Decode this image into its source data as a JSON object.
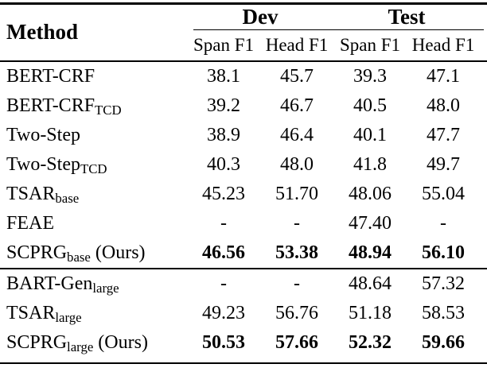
{
  "table": {
    "header": {
      "method_label": "Method",
      "group_dev": "Dev",
      "group_test": "Test",
      "subheaders": [
        "Span F1",
        "Head F1",
        "Span F1",
        "Head F1"
      ]
    },
    "rows_group1": [
      {
        "name": "BERT-CRF",
        "sub": "",
        "suffix": "",
        "values": [
          "38.1",
          "45.7",
          "39.3",
          "47.1"
        ],
        "bold": false
      },
      {
        "name": "BERT-CRF",
        "sub": "TCD",
        "suffix": "",
        "values": [
          "39.2",
          "46.7",
          "40.5",
          "48.0"
        ],
        "bold": false
      },
      {
        "name": "Two-Step",
        "sub": "",
        "suffix": "",
        "values": [
          "38.9",
          "46.4",
          "40.1",
          "47.7"
        ],
        "bold": false
      },
      {
        "name": "Two-Step",
        "sub": "TCD",
        "suffix": "",
        "values": [
          "40.3",
          "48.0",
          "41.8",
          "49.7"
        ],
        "bold": false
      },
      {
        "name": "TSAR",
        "sub": "base",
        "suffix": "",
        "values": [
          "45.23",
          "51.70",
          "48.06",
          "55.04"
        ],
        "bold": false
      },
      {
        "name": "FEAE",
        "sub": "",
        "suffix": "",
        "values": [
          "-",
          "-",
          "47.40",
          "-"
        ],
        "bold": false
      },
      {
        "name": "SCPRG",
        "sub": "base",
        "suffix": " (Ours)",
        "values": [
          "46.56",
          "53.38",
          "48.94",
          "56.10"
        ],
        "bold": true
      }
    ],
    "rows_group2": [
      {
        "name": "BART-Gen",
        "sub": "large",
        "suffix": "",
        "values": [
          "-",
          "-",
          "48.64",
          "57.32"
        ],
        "bold": false
      },
      {
        "name": "TSAR",
        "sub": "large",
        "suffix": "",
        "values": [
          "49.23",
          "56.76",
          "51.18",
          "58.53"
        ],
        "bold": false
      },
      {
        "name": "SCPRG",
        "sub": "large",
        "suffix": " (Ours)",
        "values": [
          "50.53",
          "57.66",
          "52.32",
          "59.66"
        ],
        "bold": true
      }
    ],
    "colors": {
      "text": "#000000",
      "background": "#ffffff",
      "rule": "#000000"
    }
  }
}
